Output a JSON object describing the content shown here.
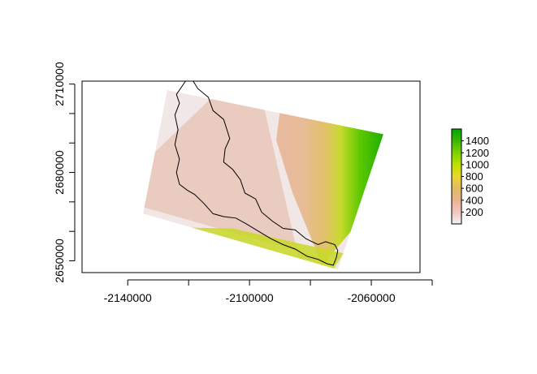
{
  "chart_data": {
    "type": "heatmap",
    "title": "",
    "xlabel": "",
    "ylabel": "",
    "xlim": [
      -2155000,
      -2044000
    ],
    "ylim": [
      2646000,
      2711000
    ],
    "x_ticks": [
      -2140000,
      -2100000,
      -2060000
    ],
    "x_minor_ticks": [
      -2120000,
      -2080000,
      -2040000
    ],
    "y_ticks": [
      2650000,
      2680000,
      2710000
    ],
    "y_minor_ticks": [
      2660000,
      2670000,
      2690000,
      2700000
    ],
    "x_tick_labels": [
      "-2140000",
      "-2100000",
      "-2060000"
    ],
    "y_tick_labels": [
      "2650000",
      "2680000",
      "2710000"
    ],
    "raster_corners": [
      [
        -2127000,
        2708000
      ],
      [
        -2056000,
        2693000
      ],
      [
        -2071000,
        2647000
      ],
      [
        -2135000,
        2666000
      ]
    ],
    "boundary_polygon": [
      [
        -2121000,
        2711000
      ],
      [
        -2118500,
        2711000
      ],
      [
        -2117000,
        2708500
      ],
      [
        -2113500,
        2705500
      ],
      [
        -2112000,
        2701000
      ],
      [
        -2108500,
        2698000
      ],
      [
        -2106500,
        2691500
      ],
      [
        -2108000,
        2688000
      ],
      [
        -2108500,
        2683500
      ],
      [
        -2105500,
        2681000
      ],
      [
        -2103000,
        2677500
      ],
      [
        -2101500,
        2673000
      ],
      [
        -2098000,
        2671000
      ],
      [
        -2096000,
        2666500
      ],
      [
        -2092500,
        2663500
      ],
      [
        -2089000,
        2661000
      ],
      [
        -2085000,
        2660500
      ],
      [
        -2081500,
        2657500
      ],
      [
        -2077500,
        2655500
      ],
      [
        -2075000,
        2656500
      ],
      [
        -2072000,
        2655500
      ],
      [
        -2071000,
        2653500
      ],
      [
        -2071500,
        2651000
      ],
      [
        -2072500,
        2648500
      ],
      [
        -2074500,
        2649000
      ],
      [
        -2077500,
        2650500
      ],
      [
        -2081000,
        2651500
      ],
      [
        -2085000,
        2654000
      ],
      [
        -2089000,
        2655500
      ],
      [
        -2093000,
        2657500
      ],
      [
        -2097000,
        2660000
      ],
      [
        -2101000,
        2662500
      ],
      [
        -2104500,
        2664500
      ],
      [
        -2108500,
        2665000
      ],
      [
        -2112000,
        2666000
      ],
      [
        -2115000,
        2669500
      ],
      [
        -2118000,
        2672500
      ],
      [
        -2120500,
        2674000
      ],
      [
        -2123000,
        2676000
      ],
      [
        -2124000,
        2680000
      ],
      [
        -2123000,
        2684500
      ],
      [
        -2124500,
        2689500
      ],
      [
        -2123500,
        2694500
      ],
      [
        -2124500,
        2699500
      ],
      [
        -2123000,
        2703500
      ],
      [
        -2124000,
        2706500
      ]
    ],
    "colorbar": {
      "min": 0,
      "max": 1600,
      "ticks": [
        200,
        400,
        600,
        800,
        1000,
        1200,
        1400
      ],
      "tick_labels": [
        "200",
        "400",
        "600",
        "800",
        "1000",
        "1200",
        "1400"
      ],
      "palette": [
        "#F2F2F2",
        "#EFC7BE",
        "#EAB48F",
        "#E3BB62",
        "#E9D72E",
        "#BFE000",
        "#79D300",
        "#3DB600",
        "#00A600"
      ]
    }
  }
}
